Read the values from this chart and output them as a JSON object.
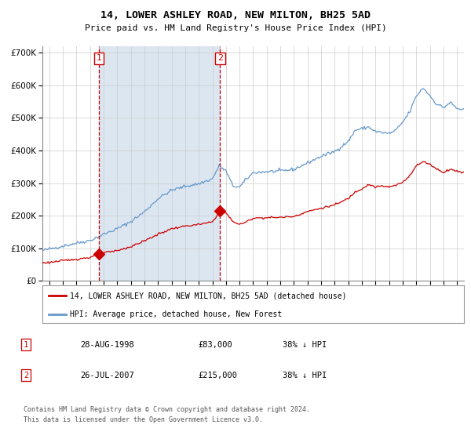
{
  "title1": "14, LOWER ASHLEY ROAD, NEW MILTON, BH25 5AD",
  "title2": "Price paid vs. HM Land Registry's House Price Index (HPI)",
  "legend_line1": "14, LOWER ASHLEY ROAD, NEW MILTON, BH25 5AD (detached house)",
  "legend_line2": "HPI: Average price, detached house, New Forest",
  "table_row1": [
    "1",
    "28-AUG-1998",
    "£83,000",
    "38% ↓ HPI"
  ],
  "table_row2": [
    "2",
    "26-JUL-2007",
    "£215,000",
    "38% ↓ HPI"
  ],
  "footer": "Contains HM Land Registry data © Crown copyright and database right 2024.\nThis data is licensed under the Open Government Licence v3.0.",
  "purchase1_x": 1998.65,
  "purchase1_y": 83000,
  "purchase2_x": 2007.56,
  "purchase2_y": 215000,
  "vline1_x": 1998.65,
  "vline2_x": 2007.56,
  "shaded_start": 1998.65,
  "shaded_end": 2007.56,
  "hpi_color": "#6699cc",
  "price_color": "#cc0000",
  "shaded_color": "#dce6f1",
  "vline_color": "#cc0000",
  "background_color": "#ffffff",
  "grid_color": "#cccccc",
  "ylim": [
    0,
    720000
  ],
  "xlim": [
    1994.5,
    2025.5
  ],
  "yticks": [
    0,
    100000,
    200000,
    300000,
    400000,
    500000,
    600000,
    700000
  ],
  "hpi_keypoints": [
    [
      1994.5,
      93000
    ],
    [
      1995.0,
      98000
    ],
    [
      1996.0,
      107000
    ],
    [
      1997.0,
      116000
    ],
    [
      1998.0,
      124000
    ],
    [
      1999.0,
      143000
    ],
    [
      2000.0,
      160000
    ],
    [
      2001.0,
      182000
    ],
    [
      2002.0,
      212000
    ],
    [
      2003.0,
      252000
    ],
    [
      2004.0,
      278000
    ],
    [
      2005.0,
      290000
    ],
    [
      2006.0,
      298000
    ],
    [
      2007.0,
      313000
    ],
    [
      2007.5,
      353000
    ],
    [
      2008.0,
      337000
    ],
    [
      2008.5,
      292000
    ],
    [
      2009.0,
      287000
    ],
    [
      2009.5,
      312000
    ],
    [
      2010.0,
      332000
    ],
    [
      2011.0,
      335000
    ],
    [
      2012.0,
      337000
    ],
    [
      2013.0,
      342000
    ],
    [
      2014.0,
      362000
    ],
    [
      2015.0,
      382000
    ],
    [
      2016.0,
      397000
    ],
    [
      2017.0,
      428000
    ],
    [
      2017.5,
      462000
    ],
    [
      2018.0,
      467000
    ],
    [
      2018.5,
      472000
    ],
    [
      2019.0,
      458000
    ],
    [
      2020.0,
      452000
    ],
    [
      2020.5,
      462000
    ],
    [
      2021.0,
      487000
    ],
    [
      2021.5,
      518000
    ],
    [
      2022.0,
      567000
    ],
    [
      2022.5,
      592000
    ],
    [
      2023.0,
      568000
    ],
    [
      2023.5,
      542000
    ],
    [
      2024.0,
      532000
    ],
    [
      2024.5,
      547000
    ],
    [
      2025.0,
      528000
    ],
    [
      2025.5,
      525000
    ]
  ],
  "price_keypoints": [
    [
      1994.5,
      55000
    ],
    [
      1995.0,
      57000
    ],
    [
      1996.0,
      62000
    ],
    [
      1997.0,
      67000
    ],
    [
      1998.0,
      72000
    ],
    [
      1998.65,
      83000
    ],
    [
      1999.0,
      86000
    ],
    [
      2000.0,
      93000
    ],
    [
      2001.0,
      105000
    ],
    [
      2002.0,
      123000
    ],
    [
      2003.0,
      143000
    ],
    [
      2004.0,
      160000
    ],
    [
      2005.0,
      168000
    ],
    [
      2006.0,
      173000
    ],
    [
      2007.0,
      181000
    ],
    [
      2007.56,
      215000
    ],
    [
      2008.0,
      208000
    ],
    [
      2008.5,
      183000
    ],
    [
      2009.0,
      173000
    ],
    [
      2009.5,
      181000
    ],
    [
      2010.0,
      193000
    ],
    [
      2011.0,
      194000
    ],
    [
      2012.0,
      195000
    ],
    [
      2013.0,
      198000
    ],
    [
      2014.0,
      213000
    ],
    [
      2015.0,
      223000
    ],
    [
      2016.0,
      233000
    ],
    [
      2017.0,
      253000
    ],
    [
      2017.5,
      273000
    ],
    [
      2018.0,
      283000
    ],
    [
      2018.5,
      296000
    ],
    [
      2019.0,
      288000
    ],
    [
      2019.5,
      291000
    ],
    [
      2020.0,
      288000
    ],
    [
      2020.5,
      293000
    ],
    [
      2021.0,
      303000
    ],
    [
      2021.5,
      323000
    ],
    [
      2022.0,
      353000
    ],
    [
      2022.5,
      366000
    ],
    [
      2023.0,
      358000
    ],
    [
      2023.5,
      343000
    ],
    [
      2024.0,
      333000
    ],
    [
      2024.5,
      343000
    ],
    [
      2025.0,
      336000
    ],
    [
      2025.5,
      333000
    ]
  ]
}
